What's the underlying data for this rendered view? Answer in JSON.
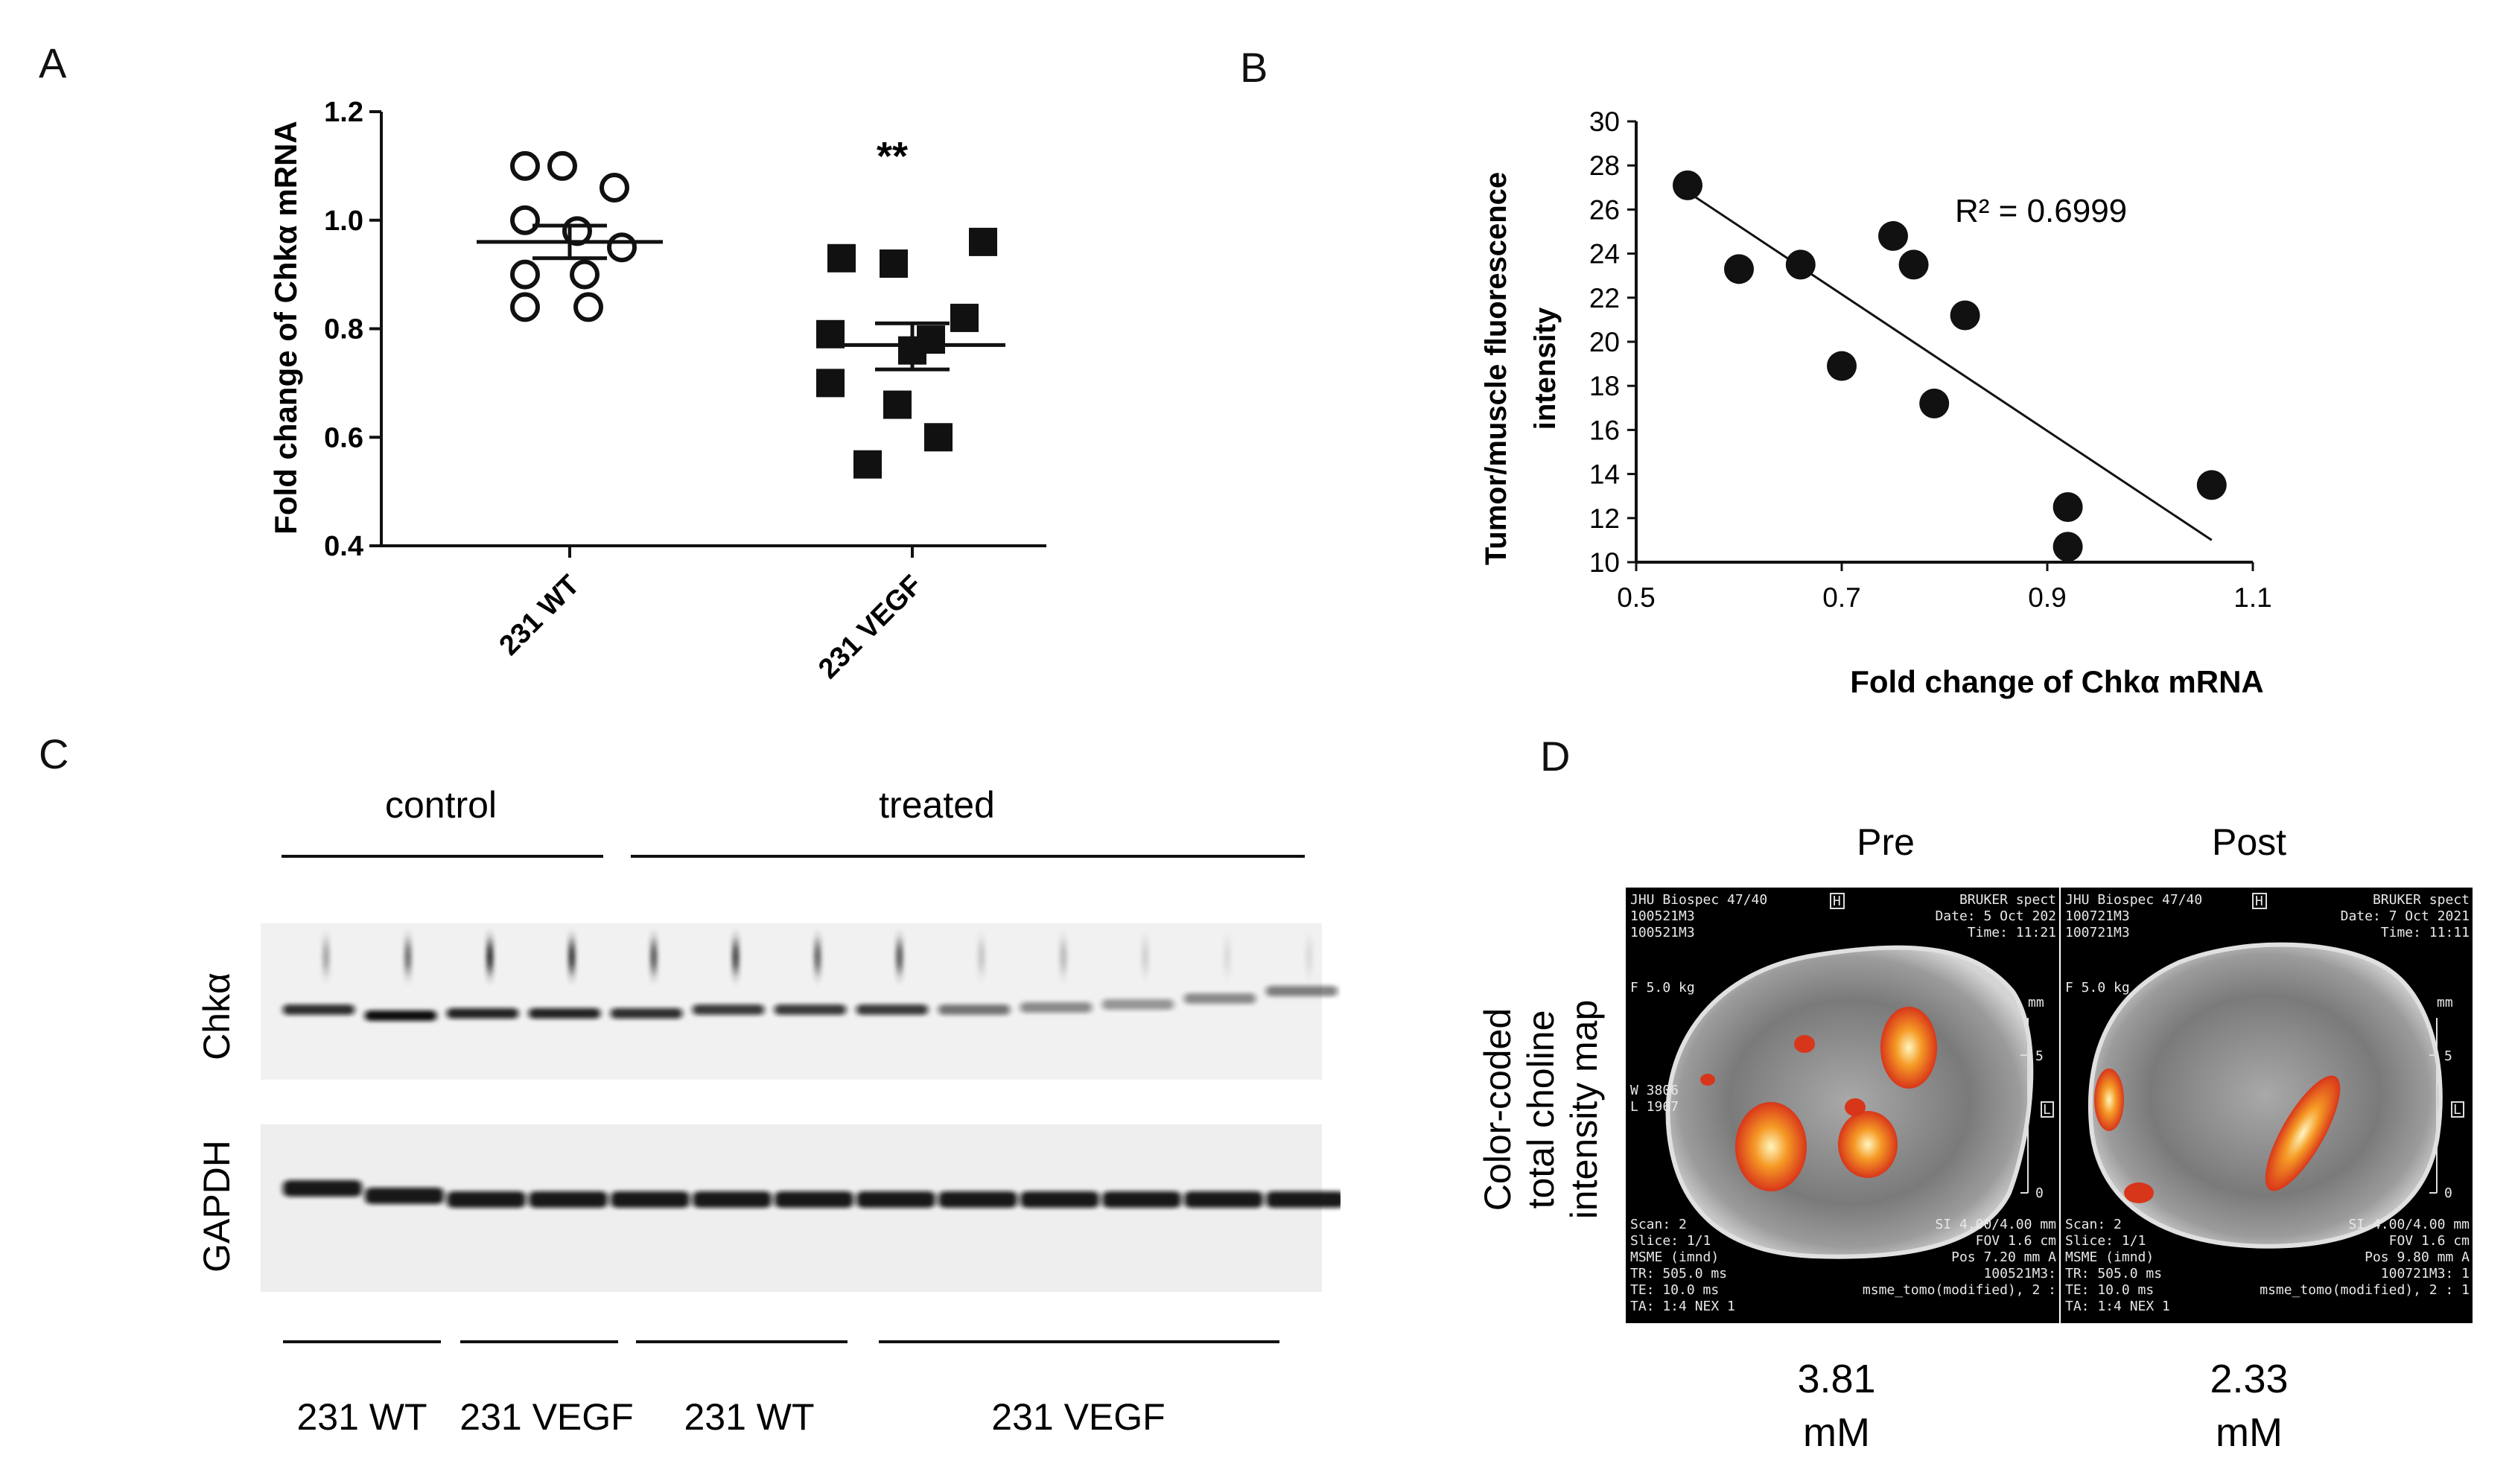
{
  "panels": {
    "A": {
      "letter": "A"
    },
    "B": {
      "letter": "B"
    },
    "C": {
      "letter": "C"
    },
    "D": {
      "letter": "D"
    }
  },
  "chart_data": [
    {
      "panel": "A",
      "type": "scatter",
      "ylabel": "Fold change of Chkα mRNA",
      "xlabel": "",
      "ylim": [
        0.4,
        1.2
      ],
      "yticks": [
        "0.4",
        "0.6",
        "0.8",
        "1.0",
        "1.2"
      ],
      "categories": [
        "231 WT",
        "231 VEGF"
      ],
      "annotation": "**",
      "series": [
        {
          "marker": "open-circle",
          "category": "231 WT",
          "values": [
            1.1,
            1.1,
            1.06,
            1.0,
            0.98,
            0.95,
            0.9,
            0.9,
            0.84,
            0.84
          ],
          "mean": 0.96,
          "sem_low": 0.93,
          "sem_high": 0.99
        },
        {
          "marker": "filled-square",
          "category": "231 VEGF",
          "values": [
            0.96,
            0.93,
            0.92,
            0.82,
            0.79,
            0.78,
            0.76,
            0.7,
            0.66,
            0.6,
            0.55
          ],
          "mean": 0.77,
          "sem_low": 0.725,
          "sem_high": 0.81
        }
      ]
    },
    {
      "panel": "B",
      "type": "scatter",
      "ylabel_lines": [
        "Tumor/muscle fluorescence",
        "intensity"
      ],
      "xlabel": "Fold change of Chkα mRNA",
      "xlim": [
        0.5,
        1.1
      ],
      "ylim": [
        10,
        30
      ],
      "xticks": [
        "0.5",
        "0.7",
        "0.9",
        "1.1"
      ],
      "yticks": [
        "10",
        "12",
        "14",
        "16",
        "18",
        "20",
        "22",
        "24",
        "26",
        "28",
        "30"
      ],
      "annotation": "R² = 0.6999",
      "points": [
        {
          "x": 0.55,
          "y": 27.1
        },
        {
          "x": 0.6,
          "y": 23.3
        },
        {
          "x": 0.66,
          "y": 23.5
        },
        {
          "x": 0.7,
          "y": 18.9
        },
        {
          "x": 0.75,
          "y": 24.8
        },
        {
          "x": 0.77,
          "y": 23.5
        },
        {
          "x": 0.79,
          "y": 17.2
        },
        {
          "x": 0.82,
          "y": 21.2
        },
        {
          "x": 0.92,
          "y": 12.5
        },
        {
          "x": 0.92,
          "y": 10.7
        },
        {
          "x": 1.06,
          "y": 13.5
        }
      ],
      "trendline": {
        "x_start": 0.55,
        "y_start": 26.8,
        "x_end": 1.06,
        "y_end": 11.0
      }
    }
  ],
  "blot": {
    "top_groups": [
      "control",
      "treated"
    ],
    "proteins": [
      "Chkα",
      "GAPDH"
    ],
    "bottom_groups": [
      "231 WT",
      "231 VEGF",
      "231 WT",
      "231 VEGF"
    ]
  },
  "mri": {
    "ylabel_lines": [
      "Color-coded",
      "total choline",
      "intensity map"
    ],
    "images": [
      {
        "title": "Pre",
        "header_left": [
          "JHU Biospec 47/40",
          "100521M3",
          "100521M3"
        ],
        "header_right": [
          "BRUKER spect",
          "Date:  5 Oct 202",
          "Time: 11:21"
        ],
        "force": "F  5.0 kg",
        "wl": [
          "W 3806",
          "L 1967"
        ],
        "footer_left": [
          "Scan: 2",
          "Slice: 1/1",
          "MSME (imnd)",
          "TR: 505.0 ms",
          "TE: 10.0 ms",
          "TA: 1:4 NEX 1"
        ],
        "footer_right": [
          "SI 4.00/4.00 mm",
          "FOV  1.6 cm",
          "Pos 7.20 mm A",
          "100521M3:",
          "msme_tomo(modified), 2 :"
        ],
        "value": "3.81",
        "unit": "mM"
      },
      {
        "title": "Post",
        "header_left": [
          "JHU Biospec 47/40",
          "100721M3",
          "100721M3"
        ],
        "header_right": [
          "BRUKER spect",
          "Date:  7 Oct 2021",
          "Time: 11:11"
        ],
        "force": "F  5.0 kg",
        "wl": [],
        "footer_left": [
          "Scan: 2",
          "Slice: 1/1",
          "MSME (imnd)",
          "TR: 505.0 ms",
          "TE: 10.0 ms",
          "TA: 1:4 NEX 1"
        ],
        "footer_right": [
          "SI 4.00/4.00 mm",
          "FOV  1.6 cm",
          "Pos 9.80 mm A",
          "100721M3: 1",
          "msme_tomo(modified), 2 : 1"
        ],
        "value": "2.33",
        "unit": "mM"
      }
    ],
    "scale_letter": "H",
    "ruler_unit": "mm",
    "ruler_ticks": [
      "5",
      "0"
    ],
    "side_letter": "L"
  },
  "colors": {
    "ink": "#111111",
    "hot_low": "#d8361a",
    "hot_mid": "#f59a25",
    "hot_high": "#fff6c0"
  }
}
